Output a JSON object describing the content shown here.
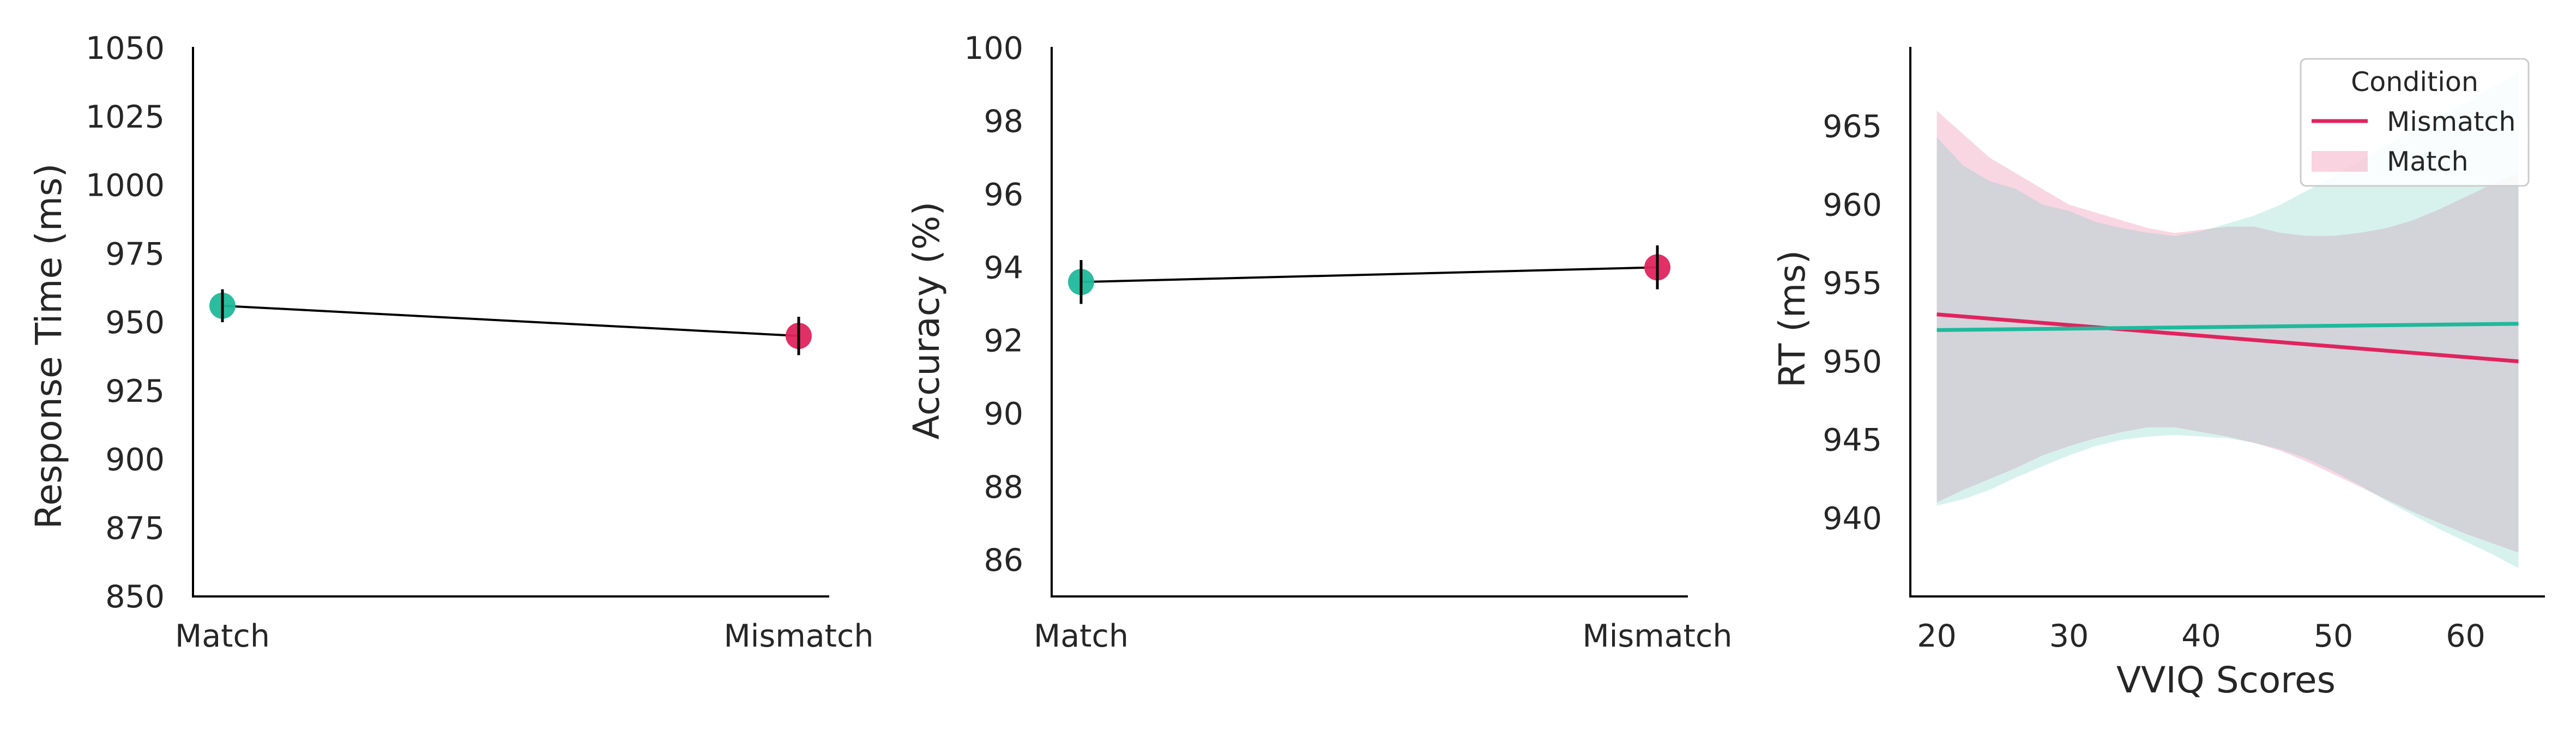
{
  "colors": {
    "match": "#1fb99b",
    "mismatch": "#e0245e",
    "axis": "#000000",
    "connector": "#000000",
    "band_overlap": "#d3d3da",
    "text": "#262626"
  },
  "chart_data": [
    {
      "type": "scatter",
      "panel": "response-time",
      "ylabel": "Response Time (ms)",
      "xlabel": "",
      "categories": [
        "Match",
        "Mismatch"
      ],
      "values": [
        956,
        945
      ],
      "error": [
        6,
        7
      ],
      "ylim": [
        850,
        1050
      ],
      "yticks": [
        "850",
        "875",
        "900",
        "925",
        "950",
        "975",
        "1000",
        "1025",
        "1050"
      ],
      "connected": true
    },
    {
      "type": "scatter",
      "panel": "accuracy",
      "ylabel": "Accuracy (%)",
      "xlabel": "",
      "categories": [
        "Match",
        "Mismatch"
      ],
      "values": [
        93.6,
        94.0
      ],
      "error": [
        0.6,
        0.6
      ],
      "ylim": [
        85,
        100
      ],
      "yticks": [
        "86",
        "88",
        "90",
        "92",
        "94",
        "96",
        "98",
        "100"
      ],
      "connected": true
    },
    {
      "type": "line",
      "panel": "rt-vviq",
      "ylabel": "RT (ms)",
      "xlabel": "VVIQ Scores",
      "xlim": [
        18,
        66
      ],
      "ylim": [
        935,
        970
      ],
      "xticks": [
        "20",
        "30",
        "40",
        "50",
        "60"
      ],
      "yticks": [
        "940",
        "945",
        "950",
        "955",
        "960",
        "965"
      ],
      "legend": {
        "title": "Condition",
        "position": "top-right",
        "entries": [
          "Mismatch",
          "Match"
        ]
      },
      "series": [
        {
          "name": "Mismatch",
          "x": [
            20,
            64
          ],
          "y": [
            953,
            950
          ],
          "band_x": [
            20,
            22,
            24,
            26,
            28,
            30,
            32,
            34,
            36,
            38,
            40,
            42,
            44,
            46,
            48,
            50,
            52,
            54,
            56,
            58,
            60,
            62,
            64
          ],
          "band_upper": [
            966,
            964.5,
            963,
            962,
            961,
            960,
            959.5,
            959,
            958.5,
            958.2,
            958.4,
            958.6,
            958.6,
            958.2,
            958.0,
            958.0,
            958.2,
            958.5,
            959.0,
            959.7,
            960.5,
            961.3,
            962.0
          ],
          "band_lower": [
            941,
            941.8,
            942.5,
            943.2,
            944.0,
            944.6,
            945.1,
            945.5,
            945.8,
            945.8,
            945.5,
            945.2,
            944.8,
            944.3,
            943.6,
            942.8,
            942.0,
            941.2,
            940.4,
            939.7,
            939.0,
            938.4,
            937.8
          ]
        },
        {
          "name": "Match",
          "x": [
            20,
            64
          ],
          "y": [
            952,
            952.4
          ],
          "band_x": [
            20,
            22,
            24,
            26,
            28,
            30,
            32,
            34,
            36,
            38,
            40,
            42,
            44,
            46,
            48,
            50,
            52,
            54,
            56,
            58,
            60,
            62,
            64
          ],
          "band_upper": [
            964.3,
            962.5,
            961.5,
            961.0,
            960.0,
            959.6,
            958.9,
            958.5,
            958.2,
            958.0,
            958.3,
            958.8,
            959.3,
            960.0,
            960.9,
            961.8,
            962.8,
            963.8,
            964.7,
            965.6,
            966.5,
            967.5,
            968.4
          ],
          "band_lower": [
            940.8,
            941.2,
            941.8,
            942.6,
            943.3,
            944.0,
            944.6,
            945.0,
            945.2,
            945.3,
            945.2,
            945.1,
            944.8,
            944.4,
            943.8,
            943.0,
            942.1,
            941.1,
            940.2,
            939.3,
            938.5,
            937.7,
            936.8
          ]
        }
      ]
    }
  ]
}
